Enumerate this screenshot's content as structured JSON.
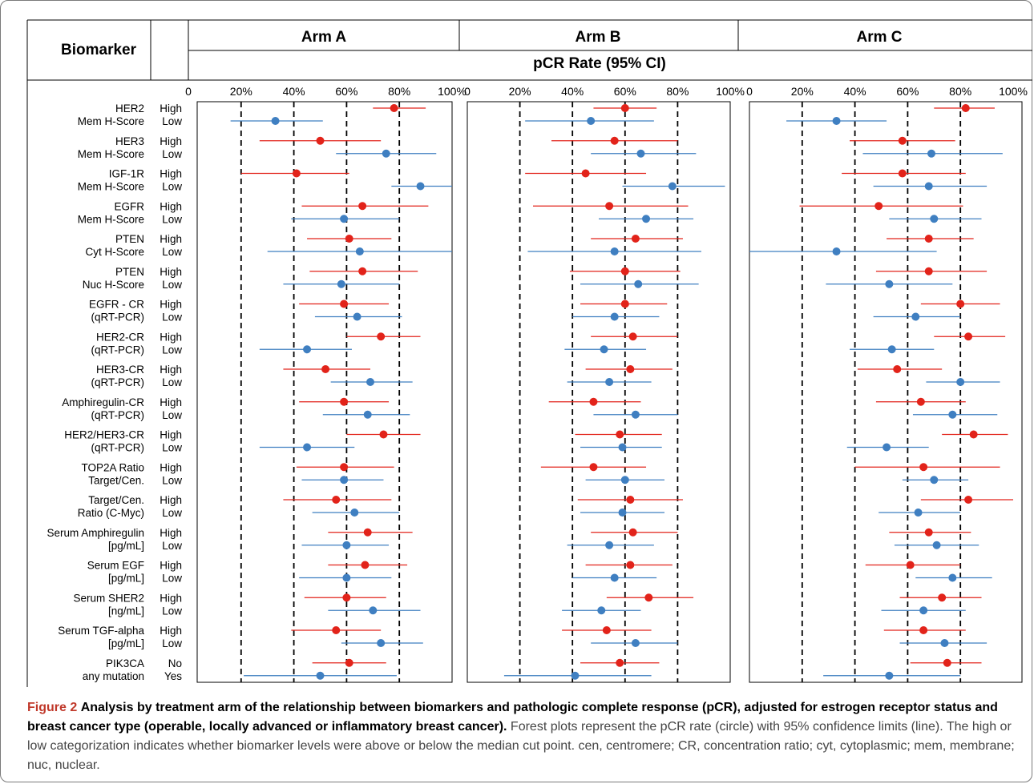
{
  "header": {
    "biomarker_label": "Biomarker",
    "arms": [
      "Arm A",
      "Arm B",
      "Arm C"
    ],
    "metric_label": "pCR Rate (95% CI)",
    "ticks": [
      "0",
      "20%",
      "40%",
      "60%",
      "80%",
      "100%"
    ]
  },
  "caption": {
    "label": "Figure 2",
    "bold_text": "Analysis by treatment arm of the relationship between biomarkers and pathologic complete response (pCR), adjusted for estrogen receptor status and breast cancer type (operable, locally advanced or inflammatory breast cancer).",
    "text": "Forest plots represent the pCR rate (circle) with 95% confidence limits (line). The high or low categorization indicates whether biomarker levels were above or below the median cut point. cen, centromere; CR, concentration ratio; cyt, cytoplasmic; mem, membrane; nuc, nuclear."
  },
  "colors": {
    "high": "#e2231a",
    "low": "#3f7fc1"
  },
  "chart_data": {
    "type": "forest",
    "xlabel": "pCR Rate (95% CI)",
    "xlim": [
      0,
      100
    ],
    "xticks": [
      0,
      20,
      40,
      60,
      80,
      100
    ],
    "reference_lines": [
      20,
      40,
      60,
      80
    ],
    "panels": [
      "Arm A",
      "Arm B",
      "Arm C"
    ],
    "biomarkers": [
      {
        "label": [
          "HER2",
          "Mem H-Score"
        ],
        "levels": [
          "High",
          "Low"
        ]
      },
      {
        "label": [
          "HER3",
          "Mem H-Score"
        ],
        "levels": [
          "High",
          "Low"
        ]
      },
      {
        "label": [
          "IGF-1R",
          "Mem H-Score"
        ],
        "levels": [
          "High",
          "Low"
        ]
      },
      {
        "label": [
          "EGFR",
          "Mem H-Score"
        ],
        "levels": [
          "High",
          "Low"
        ]
      },
      {
        "label": [
          "PTEN",
          "Cyt H-Score"
        ],
        "levels": [
          "High",
          "Low"
        ]
      },
      {
        "label": [
          "PTEN",
          "Nuc H-Score"
        ],
        "levels": [
          "High",
          "Low"
        ]
      },
      {
        "label": [
          "EGFR - CR",
          "(qRT-PCR)"
        ],
        "levels": [
          "High",
          "Low"
        ]
      },
      {
        "label": [
          "HER2-CR",
          "(qRT-PCR)"
        ],
        "levels": [
          "High",
          "Low"
        ]
      },
      {
        "label": [
          "HER3-CR",
          "(qRT-PCR)"
        ],
        "levels": [
          "High",
          "Low"
        ]
      },
      {
        "label": [
          "Amphiregulin-CR",
          "(qRT-PCR)"
        ],
        "levels": [
          "High",
          "Low"
        ]
      },
      {
        "label": [
          "HER2/HER3-CR",
          "(qRT-PCR)"
        ],
        "levels": [
          "High",
          "Low"
        ]
      },
      {
        "label": [
          "TOP2A Ratio",
          "Target/Cen."
        ],
        "levels": [
          "High",
          "Low"
        ]
      },
      {
        "label": [
          "Target/Cen.",
          "Ratio (C-Myc)"
        ],
        "levels": [
          "High",
          "Low"
        ]
      },
      {
        "label": [
          "Serum Amphiregulin",
          "[pg/mL]"
        ],
        "levels": [
          "High",
          "Low"
        ]
      },
      {
        "label": [
          "Serum EGF",
          "[pg/mL]"
        ],
        "levels": [
          "High",
          "Low"
        ]
      },
      {
        "label": [
          "Serum SHER2",
          "[ng/mL]"
        ],
        "levels": [
          "High",
          "Low"
        ]
      },
      {
        "label": [
          "Serum TGF-alpha",
          "[pg/mL]"
        ],
        "levels": [
          "High",
          "Low"
        ]
      },
      {
        "label": [
          "PIK3CA",
          "any mutation"
        ],
        "levels": [
          "No",
          "Yes"
        ]
      }
    ],
    "estimates": {
      "Arm A": [
        [
          [
            78,
            70,
            90
          ],
          [
            33,
            16,
            51
          ]
        ],
        [
          [
            50,
            27,
            73
          ],
          [
            75,
            56,
            94
          ]
        ],
        [
          [
            41,
            20,
            61
          ],
          [
            88,
            77,
            100
          ]
        ],
        [
          [
            66,
            43,
            91
          ],
          [
            59,
            39,
            80
          ]
        ],
        [
          [
            61,
            45,
            77
          ],
          [
            65,
            30,
            100
          ]
        ],
        [
          [
            66,
            46,
            87
          ],
          [
            58,
            36,
            80
          ]
        ],
        [
          [
            59,
            42,
            76
          ],
          [
            64,
            48,
            81
          ]
        ],
        [
          [
            73,
            60,
            88
          ],
          [
            45,
            27,
            62
          ]
        ],
        [
          [
            52,
            36,
            69
          ],
          [
            69,
            54,
            85
          ]
        ],
        [
          [
            59,
            42,
            76
          ],
          [
            68,
            51,
            84
          ]
        ],
        [
          [
            74,
            60,
            88
          ],
          [
            45,
            27,
            63
          ]
        ],
        [
          [
            59,
            41,
            78
          ],
          [
            59,
            43,
            74
          ]
        ],
        [
          [
            56,
            36,
            77
          ],
          [
            63,
            47,
            80
          ]
        ],
        [
          [
            68,
            53,
            85
          ],
          [
            60,
            43,
            76
          ]
        ],
        [
          [
            67,
            53,
            83
          ],
          [
            60,
            42,
            77
          ]
        ],
        [
          [
            60,
            44,
            75
          ],
          [
            70,
            53,
            88
          ]
        ],
        [
          [
            56,
            39,
            73
          ],
          [
            73,
            58,
            89
          ]
        ],
        [
          [
            61,
            47,
            75
          ],
          [
            50,
            21,
            79
          ]
        ]
      ],
      "Arm B": [
        [
          [
            60,
            48,
            72
          ],
          [
            47,
            22,
            71
          ]
        ],
        [
          [
            56,
            32,
            80
          ],
          [
            66,
            47,
            87
          ]
        ],
        [
          [
            45,
            22,
            68
          ],
          [
            78,
            59,
            98
          ]
        ],
        [
          [
            54,
            25,
            84
          ],
          [
            68,
            50,
            86
          ]
        ],
        [
          [
            64,
            47,
            82
          ],
          [
            56,
            23,
            89
          ]
        ],
        [
          [
            60,
            39,
            81
          ],
          [
            65,
            43,
            88
          ]
        ],
        [
          [
            60,
            43,
            76
          ],
          [
            56,
            40,
            73
          ]
        ],
        [
          [
            63,
            47,
            80
          ],
          [
            52,
            37,
            68
          ]
        ],
        [
          [
            62,
            45,
            78
          ],
          [
            54,
            38,
            70
          ]
        ],
        [
          [
            48,
            31,
            66
          ],
          [
            64,
            48,
            80
          ]
        ],
        [
          [
            58,
            41,
            74
          ],
          [
            59,
            43,
            74
          ]
        ],
        [
          [
            48,
            28,
            68
          ],
          [
            60,
            45,
            75
          ]
        ],
        [
          [
            62,
            42,
            82
          ],
          [
            59,
            43,
            75
          ]
        ],
        [
          [
            63,
            47,
            80
          ],
          [
            54,
            38,
            71
          ]
        ],
        [
          [
            62,
            45,
            78
          ],
          [
            56,
            40,
            72
          ]
        ],
        [
          [
            69,
            53,
            86
          ],
          [
            51,
            36,
            66
          ]
        ],
        [
          [
            53,
            36,
            70
          ],
          [
            64,
            47,
            80
          ]
        ],
        [
          [
            58,
            43,
            73
          ],
          [
            41,
            14,
            70
          ]
        ]
      ],
      "Arm C": [
        [
          [
            82,
            70,
            93
          ],
          [
            33,
            14,
            52
          ]
        ],
        [
          [
            58,
            38,
            78
          ],
          [
            69,
            43,
            96
          ]
        ],
        [
          [
            58,
            35,
            82
          ],
          [
            68,
            47,
            90
          ]
        ],
        [
          [
            49,
            19,
            81
          ],
          [
            70,
            53,
            88
          ]
        ],
        [
          [
            68,
            52,
            85
          ],
          [
            33,
            0,
            71
          ]
        ],
        [
          [
            68,
            48,
            90
          ],
          [
            53,
            29,
            77
          ]
        ],
        [
          [
            80,
            65,
            95
          ],
          [
            63,
            47,
            80
          ]
        ],
        [
          [
            83,
            70,
            97
          ],
          [
            54,
            38,
            70
          ]
        ],
        [
          [
            56,
            41,
            73
          ],
          [
            80,
            67,
            95
          ]
        ],
        [
          [
            65,
            48,
            82
          ],
          [
            77,
            62,
            94
          ]
        ],
        [
          [
            85,
            73,
            98
          ],
          [
            52,
            37,
            68
          ]
        ],
        [
          [
            66,
            40,
            95
          ],
          [
            70,
            58,
            83
          ]
        ],
        [
          [
            83,
            65,
            100
          ],
          [
            64,
            49,
            80
          ]
        ],
        [
          [
            68,
            53,
            84
          ],
          [
            71,
            55,
            87
          ]
        ],
        [
          [
            61,
            44,
            80
          ],
          [
            77,
            63,
            92
          ]
        ],
        [
          [
            73,
            57,
            88
          ],
          [
            66,
            50,
            82
          ]
        ],
        [
          [
            66,
            51,
            82
          ],
          [
            74,
            57,
            90
          ]
        ],
        [
          [
            75,
            61,
            88
          ],
          [
            53,
            28,
            80
          ]
        ]
      ]
    }
  }
}
